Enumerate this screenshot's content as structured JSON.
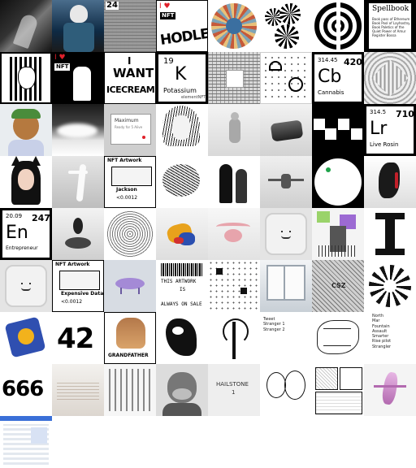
{
  "tiles": {
    "r0c2": {
      "text": "24"
    },
    "r0c3": {
      "top": "I ♥",
      "badge": "NFT",
      "word": "HODLER"
    },
    "r0c7": {
      "title": "Spellbook",
      "lines": [
        "Book pass of Ethereum",
        "Book Pool of Layhostny",
        "Book Paletics of the",
        "Quiet Power of Amur",
        "Register Bossa"
      ]
    },
    "r1c1": {
      "top": "I ♥",
      "badge": "NFT"
    },
    "r1c2": {
      "line1": "I",
      "line2": "WANT",
      "line3": "ICECREAM"
    },
    "r1c3": {
      "number": "19",
      "symbol": "K",
      "name": "Potassium",
      "footer": "elementNFT"
    },
    "r1c5": {
      "symbol": "Cb",
      "number": "420",
      "mass": "314.45",
      "name": "Cannabis"
    },
    "r2c1": {
      "title": "Maximum",
      "sub": "Ready for 5 Alive"
    },
    "r2c6": {
      "mass": "314.5",
      "number": "710",
      "symbol": "Lr",
      "name": "Live Rosin"
    },
    "r3c1": {
      "header": "NFT Artwork",
      "name": "Jackson",
      "price": "<0.0012"
    },
    "r3c7": {
      "mass": "20.09",
      "number": "247",
      "symbol": "En",
      "name": "Entrepreneur"
    },
    "r5c0": {
      "header": "NFT Artwork",
      "name": "Expensive Data",
      "price": "<0.0012"
    },
    "r5c2": {
      "line1": "THIS ARTWORK",
      "line2": "IS",
      "line3": "ALWAYS ON SALE"
    },
    "r5c5": {
      "text": "CSZ"
    },
    "r6c0": {
      "text": "42"
    },
    "r6c1": {
      "text": "GRANDFATHER"
    },
    "r6c4": {
      "lines": [
        "Tweet",
        "Stranger 1",
        "Stranger 2"
      ]
    },
    "r6c6": {
      "lines": [
        "North",
        "Mar",
        "Fountain",
        "Assault",
        "Smarter",
        "Rise pilot",
        "Strangler"
      ]
    },
    "r6c7": {
      "text": "666"
    },
    "r7c3": {
      "line1": "HAILSTONE",
      "line2": "1"
    }
  },
  "colors": {
    "black": "#000000",
    "white": "#ffffff",
    "gray": "#bdbdbd",
    "lightgray": "#e8e8e8",
    "accent": "#e0202a",
    "green": "#1fa34a"
  }
}
